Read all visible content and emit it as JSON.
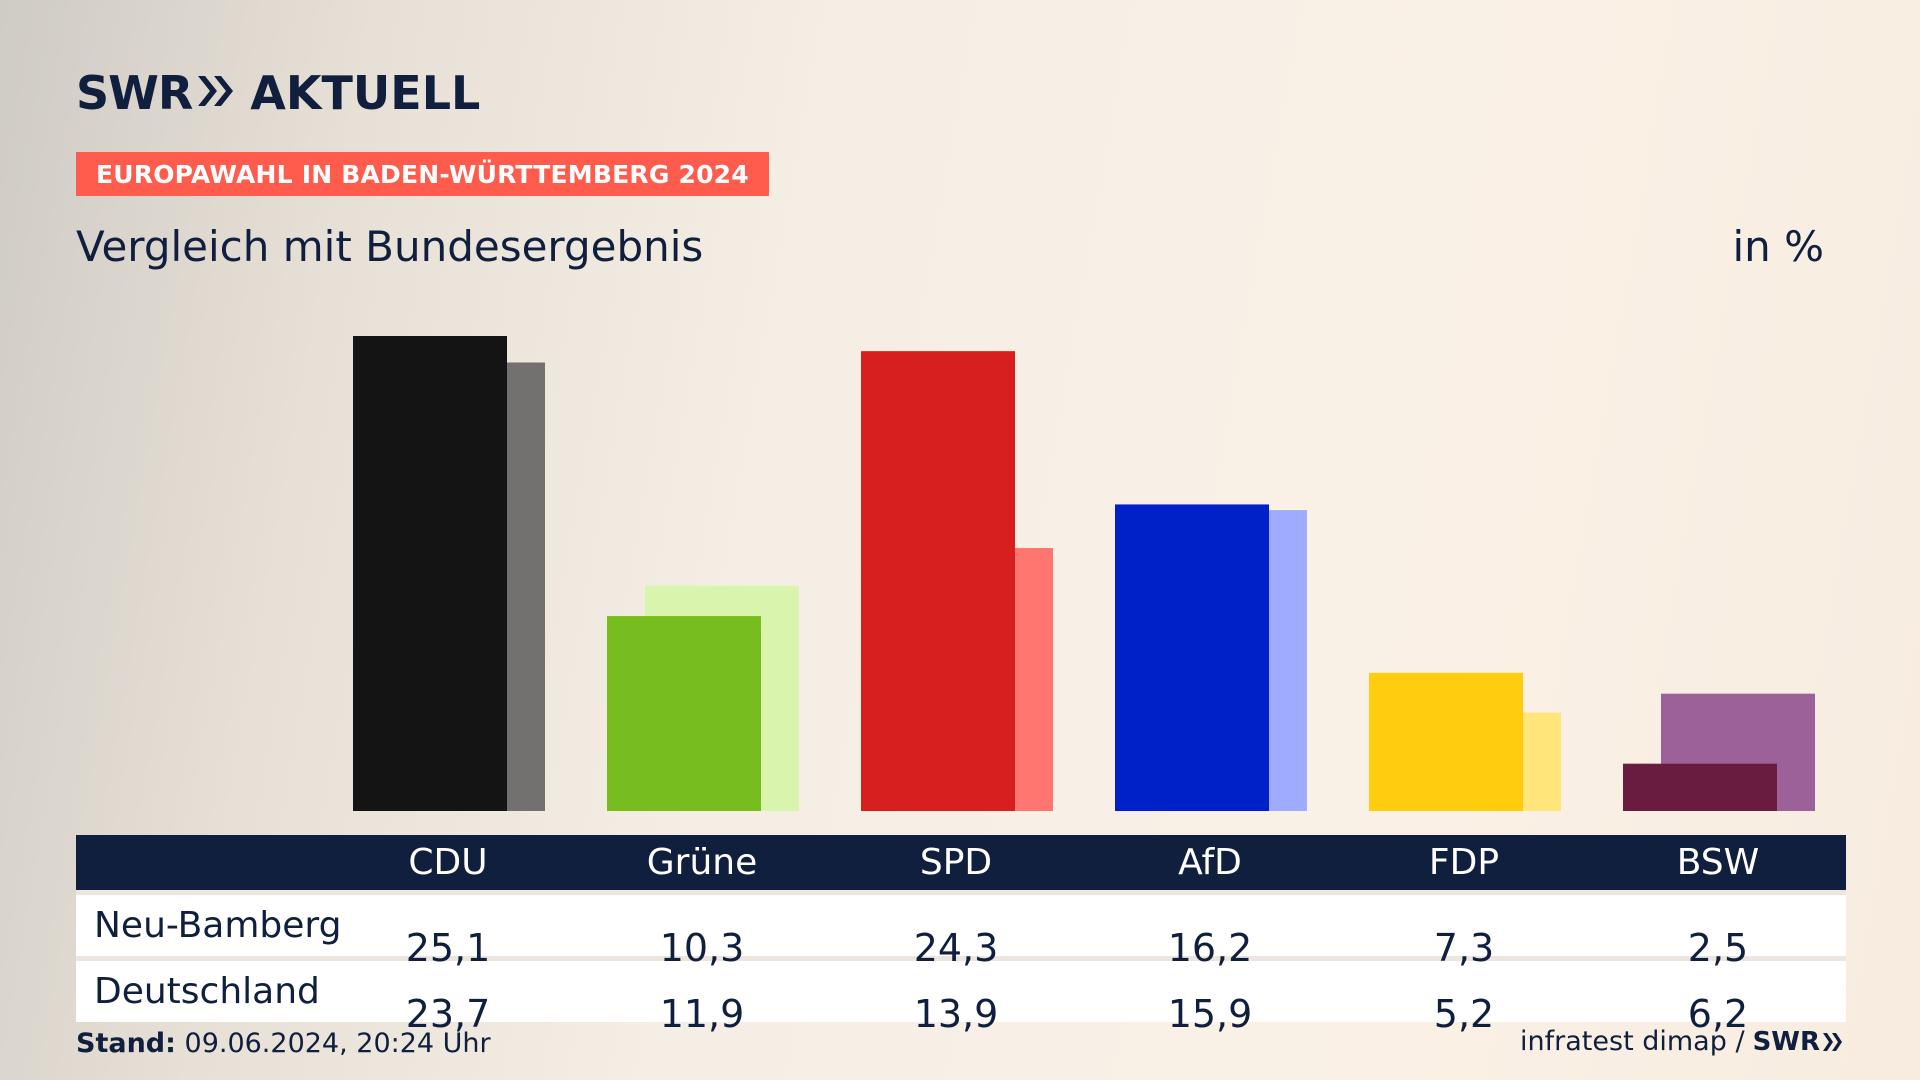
{
  "brand": {
    "logo_left": "SWR",
    "logo_right": "AKTUELL"
  },
  "badge": "EUROPAWAHL IN BADEN-WÜRTTEMBERG 2024",
  "subtitle": "Vergleich mit Bundesergebnis",
  "unit": "in %",
  "table": {
    "parties": [
      "CDU",
      "Grüne",
      "SPD",
      "AfD",
      "FDP",
      "BSW"
    ],
    "rows": [
      {
        "label": "Neu-Bamberg",
        "values": [
          "25,1",
          "10,3",
          "24,3",
          "16,2",
          "7,3",
          "2,5"
        ]
      },
      {
        "label": "Deutschland",
        "values": [
          "23,7",
          "11,9",
          "13,9",
          "15,9",
          "5,2",
          "6,2"
        ]
      }
    ]
  },
  "footer": {
    "stand_label": "Stand:",
    "stand_value": "09.06.2024, 20:24 Uhr",
    "source": "infratest dimap /",
    "source_logo": "SWR"
  },
  "chart_data": {
    "type": "bar",
    "categories": [
      "CDU",
      "Grüne",
      "SPD",
      "AfD",
      "FDP",
      "BSW"
    ],
    "series": [
      {
        "name": "Neu-Bamberg",
        "values": [
          25.1,
          10.3,
          24.3,
          16.2,
          7.3,
          2.5
        ],
        "colors": [
          "#141414",
          "#78bd1e",
          "#d81f1f",
          "#0021c8",
          "#ffcd0d",
          "#691b40"
        ]
      },
      {
        "name": "Deutschland",
        "values": [
          23.7,
          11.9,
          13.9,
          15.9,
          5.2,
          6.2
        ],
        "colors": [
          "#737170",
          "#d8f4ad",
          "#ff7570",
          "#9fabff",
          "#ffe57a",
          "#9c6198"
        ]
      }
    ],
    "ylim": [
      0,
      25.1
    ],
    "grid": false,
    "legend": "none (table below chart)"
  }
}
